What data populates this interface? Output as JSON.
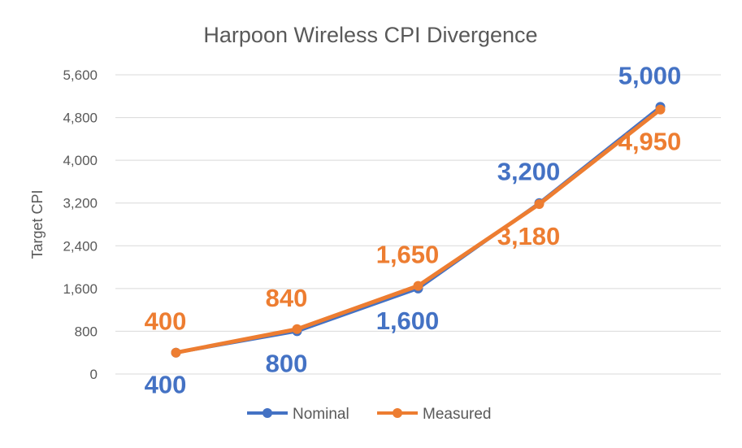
{
  "chart_data": {
    "type": "line",
    "title": "Harpoon Wireless CPI Divergence",
    "xlabel": "",
    "ylabel": "Target CPI",
    "categories": [
      "",
      "",
      "",
      "",
      ""
    ],
    "ylim": [
      0,
      5600
    ],
    "yticks": [
      0,
      800,
      1600,
      2400,
      3200,
      4000,
      4800,
      5600
    ],
    "ytick_labels": [
      "0",
      "800",
      "1,600",
      "2,400",
      "3,200",
      "4,000",
      "4,800",
      "5,600"
    ],
    "grid": true,
    "legend_position": "bottom",
    "series": [
      {
        "name": "Nominal",
        "color": "#4472c4",
        "values": [
          400,
          800,
          1600,
          3200,
          5000
        ],
        "labels": [
          "400",
          "800",
          "1,600",
          "3,200",
          "5,000"
        ],
        "label_positions": [
          "below",
          "below",
          "below",
          "above",
          "above"
        ]
      },
      {
        "name": "Measured",
        "color": "#ed7d31",
        "values": [
          400,
          840,
          1650,
          3180,
          4950
        ],
        "labels": [
          "400",
          "840",
          "1,650",
          "3,180",
          "4,950"
        ],
        "label_positions": [
          "above",
          "above",
          "above",
          "below",
          "below"
        ]
      }
    ]
  }
}
